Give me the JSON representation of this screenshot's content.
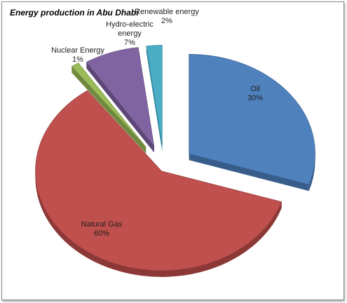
{
  "chart_data": {
    "type": "pie",
    "title": "Energy production in Abu Dhabi",
    "slices": [
      {
        "name": "Oil",
        "value": 30,
        "label": "30%",
        "color": "#4f81bd",
        "side": "#385d8a"
      },
      {
        "name": "Natural Gas",
        "value": 60,
        "label": "60%",
        "color": "#c0504d",
        "side": "#8c3836"
      },
      {
        "name": "Nuclear Energy",
        "value": 1,
        "label": "1%",
        "color": "#9bbb59",
        "side": "#71893f"
      },
      {
        "name": "Hydro-electric energy",
        "value": 7,
        "label": "7%",
        "color": "#8064a2",
        "side": "#5c4776"
      },
      {
        "name": "Renewable energy",
        "value": 2,
        "label": "2%",
        "color": "#4bacc6",
        "side": "#31859c"
      }
    ]
  }
}
